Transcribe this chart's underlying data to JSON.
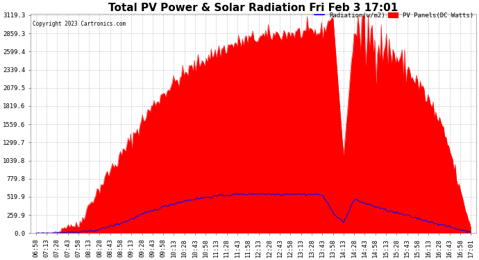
{
  "title": "Total PV Power & Solar Radiation Fri Feb 3 17:01",
  "copyright": "Copyright 2023 Cartronics.com",
  "legend_radiation": "Radiation(w/m2)",
  "legend_pv": "PV Panels(DC Watts)",
  "ymax": 3119.3,
  "yticks": [
    0.0,
    259.9,
    519.9,
    779.8,
    1039.8,
    1299.7,
    1559.6,
    1819.6,
    2079.5,
    2339.4,
    2599.4,
    2859.3,
    3119.3
  ],
  "background_color": "#ffffff",
  "plot_bg_color": "#ffffff",
  "grid_color": "#c8c8c8",
  "pv_color": "#ff0000",
  "radiation_color": "#0000ff",
  "title_color": "#000000",
  "copyright_color": "#000000",
  "xtick_labels": [
    "06:58",
    "07:13",
    "07:28",
    "07:43",
    "07:58",
    "08:13",
    "08:28",
    "08:43",
    "08:58",
    "09:13",
    "09:28",
    "09:43",
    "09:58",
    "10:13",
    "10:28",
    "10:43",
    "10:58",
    "11:13",
    "11:28",
    "11:43",
    "11:58",
    "12:13",
    "12:28",
    "12:43",
    "12:58",
    "13:13",
    "13:28",
    "13:43",
    "13:58",
    "14:13",
    "14:28",
    "14:43",
    "14:58",
    "15:13",
    "15:28",
    "15:43",
    "15:58",
    "16:13",
    "16:28",
    "16:43",
    "16:58",
    "17:01"
  ],
  "pv_values": [
    2,
    3,
    5,
    120,
    100,
    400,
    650,
    900,
    1100,
    1350,
    1600,
    1820,
    2000,
    2150,
    2280,
    2400,
    2500,
    2590,
    2660,
    2720,
    2770,
    2800,
    2830,
    2850,
    2860,
    2870,
    2870,
    2880,
    3119.3,
    1100,
    2900,
    2850,
    2780,
    2650,
    2520,
    2350,
    2150,
    1900,
    1600,
    1200,
    600,
    80
  ],
  "pv_noise_scale": [
    0,
    0,
    0,
    30,
    30,
    40,
    50,
    60,
    60,
    60,
    60,
    60,
    60,
    60,
    60,
    60,
    60,
    60,
    60,
    60,
    60,
    60,
    60,
    60,
    60,
    60,
    60,
    60,
    0,
    0,
    60,
    300,
    200,
    150,
    150,
    100,
    100,
    100,
    80,
    60,
    40,
    10
  ],
  "radiation_values": [
    2,
    3,
    5,
    10,
    15,
    25,
    55,
    100,
    140,
    200,
    270,
    320,
    380,
    420,
    460,
    490,
    510,
    530,
    545,
    555,
    560,
    565,
    560,
    555,
    565,
    560,
    555,
    550,
    300,
    150,
    480,
    430,
    380,
    330,
    290,
    250,
    210,
    170,
    130,
    90,
    50,
    15
  ],
  "title_fontsize": 11,
  "tick_fontsize": 6.5,
  "figwidth": 6.9,
  "figheight": 3.75,
  "dpi": 100
}
